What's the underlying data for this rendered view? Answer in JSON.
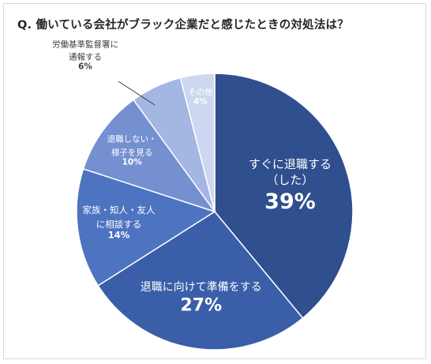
{
  "title": "Q. 働いている会社がブラック企業だと感じたときの対処法は？",
  "chart_data": {
    "type": "pie",
    "title": "Q. 働いている会社がブラック企業だと感じたときの対処法は？",
    "slices": [
      {
        "label_lines": [
          "すぐに退職する",
          "（した）"
        ],
        "label": "すぐに退職する（した）",
        "value": 39,
        "value_text": "39%",
        "color": "#2f4f8f"
      },
      {
        "label_lines": [
          "退職に向けて準備をする"
        ],
        "label": "退職に向けて準備をする",
        "value": 27,
        "value_text": "27%",
        "color": "#3a5ea8"
      },
      {
        "label_lines": [
          "家族・知人・友人",
          "に相談する"
        ],
        "label": "家族・知人・友人に相談する",
        "value": 14,
        "value_text": "14%",
        "color": "#4e73c0"
      },
      {
        "label_lines": [
          "退職しない・",
          "様子を見る"
        ],
        "label": "退職しない・様子を見る",
        "value": 10,
        "value_text": "10%",
        "color": "#7590d0"
      },
      {
        "label_lines": [
          "労働基準監督署に",
          "通報する"
        ],
        "label": "労働基準監督署に通報する",
        "value": 6,
        "value_text": "6%",
        "color": "#a4b6e2"
      },
      {
        "label_lines": [
          "その他"
        ],
        "label": "その他",
        "value": 4,
        "value_text": "4%",
        "color": "#cdd7ef"
      }
    ],
    "start_angle_deg": 0,
    "direction": "clockwise"
  }
}
